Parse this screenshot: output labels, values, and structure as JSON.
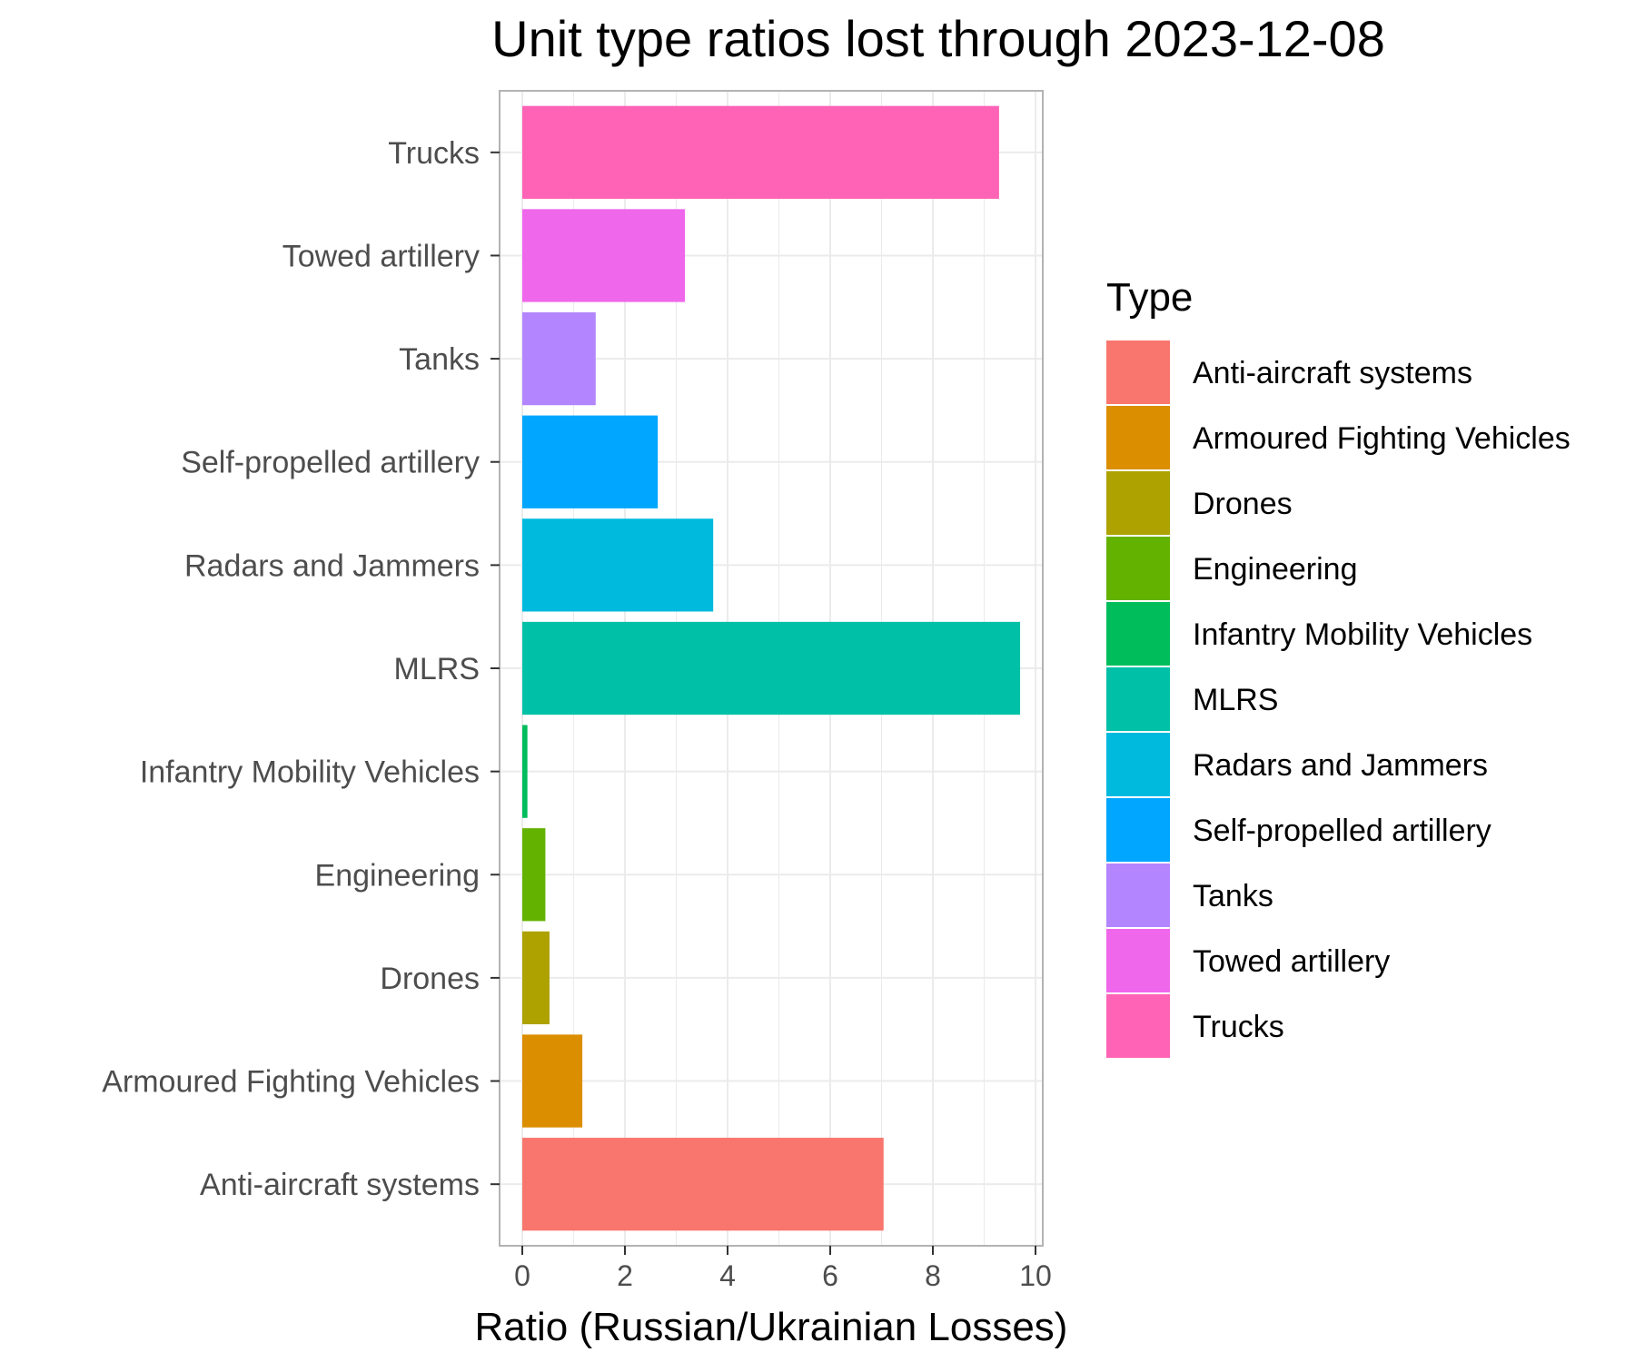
{
  "chart_data": {
    "type": "bar",
    "orientation": "horizontal",
    "title": "Unit type ratios lost through 2023-12-08",
    "xlabel": "Ratio (Russian/Ukrainian Losses)",
    "ylabel": "",
    "xlim": [
      0,
      10
    ],
    "x_ticks": [
      "0",
      "2",
      "4",
      "6",
      "8",
      "10"
    ],
    "grid": true,
    "legend": {
      "title": "Type",
      "position": "right"
    },
    "categories": [
      "Anti-aircraft systems",
      "Armoured Fighting Vehicles",
      "Drones",
      "Engineering",
      "Infantry Mobility Vehicles",
      "MLRS",
      "Radars and Jammers",
      "Self-propelled artillery",
      "Tanks",
      "Towed artillery",
      "Trucks"
    ],
    "values": [
      7.04,
      1.17,
      0.53,
      0.45,
      0.1,
      9.7,
      3.72,
      2.64,
      1.43,
      3.17,
      9.29
    ],
    "colors": [
      "#F8766D",
      "#DB8E00",
      "#AEA200",
      "#64B200",
      "#00BD5C",
      "#00C1A7",
      "#00BADE",
      "#00A6FF",
      "#B385FF",
      "#EF67EB",
      "#FF63B6"
    ]
  }
}
